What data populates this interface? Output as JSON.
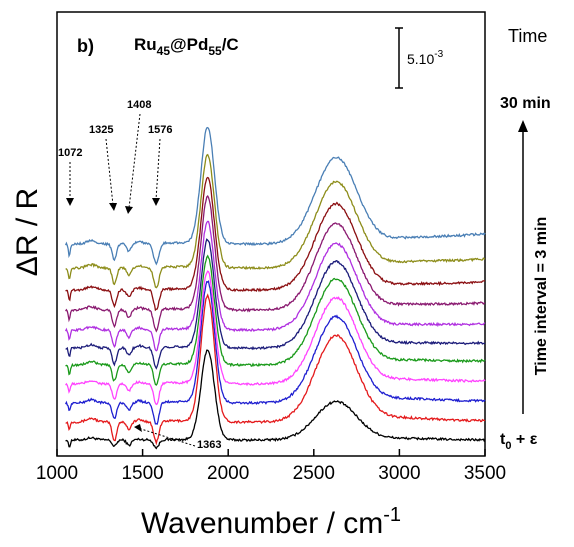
{
  "chart_data": {
    "type": "line",
    "panel_label": "b)",
    "title_main": "Ru",
    "title_sub1": "45",
    "title_mid": "@Pd",
    "title_sub2": "55",
    "title_end": "/C",
    "xlabel_main": "Wavenumber / cm",
    "xlabel_sup": "-1",
    "ylabel": "ΔR / R",
    "xlim": [
      1000,
      3500
    ],
    "x_ticks": [
      "1000",
      "1500",
      "2000",
      "2500",
      "3000",
      "3500"
    ],
    "scale_bar_main": "5.10",
    "scale_bar_sup": "-3",
    "right_label_time": "Time",
    "right_label_top": "30 min",
    "right_label_interval": "Time interval = 3 min",
    "right_label_bottom_main": "t",
    "right_label_bottom_sub": "0",
    "right_label_bottom_end": " + ε",
    "annotations": [
      "1072",
      "1325",
      "1408",
      "1576",
      "1363"
    ],
    "series": [
      {
        "color": "#000000",
        "offset": 0,
        "amps": [
          0.5,
          0.35,
          0.4,
          0.45,
          0.1,
          0.5,
          1.0,
          0.4,
          0.2,
          0.1
        ]
      },
      {
        "color": "#e41a1c",
        "offset": 18,
        "amps": [
          0.5,
          0.6,
          1.2,
          0.6,
          0.3,
          1.3,
          1.4,
          0.9,
          0.5,
          0.3
        ]
      },
      {
        "color": "#1f1fd0",
        "offset": 37,
        "amps": [
          0.6,
          0.55,
          1.0,
          0.6,
          0.3,
          1.4,
          1.35,
          0.9,
          0.5,
          0.3
        ]
      },
      {
        "color": "#ff44ff",
        "offset": 56,
        "amps": [
          0.6,
          0.55,
          1.0,
          0.6,
          0.3,
          1.35,
          1.25,
          0.9,
          0.5,
          0.3
        ]
      },
      {
        "color": "#1a9a1a",
        "offset": 75,
        "amps": [
          0.65,
          0.55,
          1.0,
          0.6,
          0.3,
          1.3,
          1.2,
          0.9,
          0.5,
          0.3
        ]
      },
      {
        "color": "#1c1c7a",
        "offset": 92,
        "amps": [
          0.65,
          0.55,
          1.0,
          0.6,
          0.3,
          1.3,
          1.2,
          0.9,
          0.5,
          0.3
        ]
      },
      {
        "color": "#b030e0",
        "offset": 110,
        "amps": [
          0.7,
          0.55,
          1.0,
          0.6,
          0.3,
          1.3,
          1.2,
          0.9,
          0.5,
          0.3
        ]
      },
      {
        "color": "#8a1a70",
        "offset": 130,
        "amps": [
          0.7,
          0.55,
          1.0,
          0.6,
          0.3,
          1.3,
          1.25,
          0.9,
          0.5,
          0.3
        ]
      },
      {
        "color": "#8b0f12",
        "offset": 150,
        "amps": [
          0.75,
          0.55,
          1.0,
          0.6,
          0.3,
          1.3,
          1.25,
          0.9,
          0.5,
          0.3
        ]
      },
      {
        "color": "#8d8d1a",
        "offset": 172,
        "amps": [
          0.8,
          0.55,
          1.0,
          0.6,
          0.3,
          1.3,
          1.25,
          0.9,
          0.5,
          0.3
        ]
      },
      {
        "color": "#4a7fb5",
        "offset": 196,
        "amps": [
          0.85,
          0.55,
          1.0,
          0.6,
          0.3,
          1.3,
          1.3,
          0.9,
          0.5,
          0.3
        ]
      }
    ]
  }
}
